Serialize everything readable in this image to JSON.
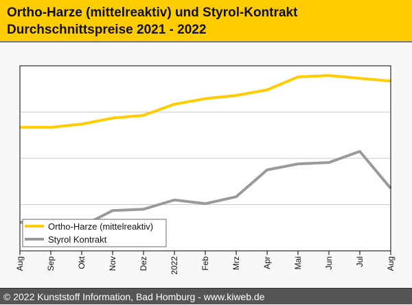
{
  "header": {
    "title_line1": "Ortho-Harze (mittelreaktiv) und Styrol-Kontrakt",
    "title_line2": "Durchschnittspreise 2021 - 2022"
  },
  "footer": {
    "text": "© 2022 Kunststoff Information, Bad Homburg - www.kiweb.de"
  },
  "colors": {
    "header": "#ffcc00",
    "ortho": "#ffcc00",
    "styrol": "#999999"
  },
  "chart_data": {
    "type": "line",
    "title": "Ortho-Harze (mittelreaktiv) und Styrol-Kontrakt Durchschnittspreise 2021 - 2022",
    "xlabel": "",
    "ylabel": "",
    "categories": [
      "Aug",
      "Sep",
      "Okt",
      "Nov",
      "Dez",
      "2022",
      "Feb",
      "Mrz",
      "Apr",
      "Mai",
      "Jun",
      "Jul",
      "Aug"
    ],
    "ylim": [
      0,
      4
    ],
    "grid": true,
    "legend_position": "bottom-left",
    "series": [
      {
        "name": "Ortho-Harze (mittelreaktiv)",
        "color": "#ffcc00",
        "values": [
          2.67,
          2.67,
          2.74,
          2.87,
          2.93,
          3.17,
          3.29,
          3.36,
          3.48,
          3.76,
          3.79,
          3.73,
          3.67
        ]
      },
      {
        "name": "Styrol Kontrakt",
        "color": "#999999",
        "values": [
          0.62,
          0.53,
          0.53,
          0.87,
          0.9,
          1.1,
          1.02,
          1.17,
          1.75,
          1.88,
          1.91,
          2.15,
          1.35
        ]
      }
    ]
  }
}
